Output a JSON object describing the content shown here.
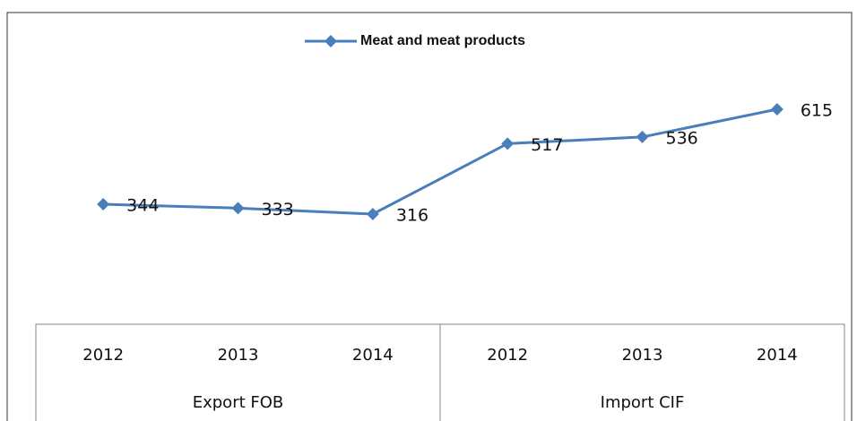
{
  "chart_data": {
    "type": "line",
    "categories": [
      "2012",
      "2013",
      "2014",
      "2012",
      "2013",
      "2014"
    ],
    "groups": [
      "Export FOB",
      "Import CIF"
    ],
    "series": [
      {
        "name": "Meat and meat products",
        "color": "#4a7ebb",
        "values": [
          344,
          333,
          316,
          517,
          536,
          615
        ]
      }
    ],
    "legend": "top"
  }
}
